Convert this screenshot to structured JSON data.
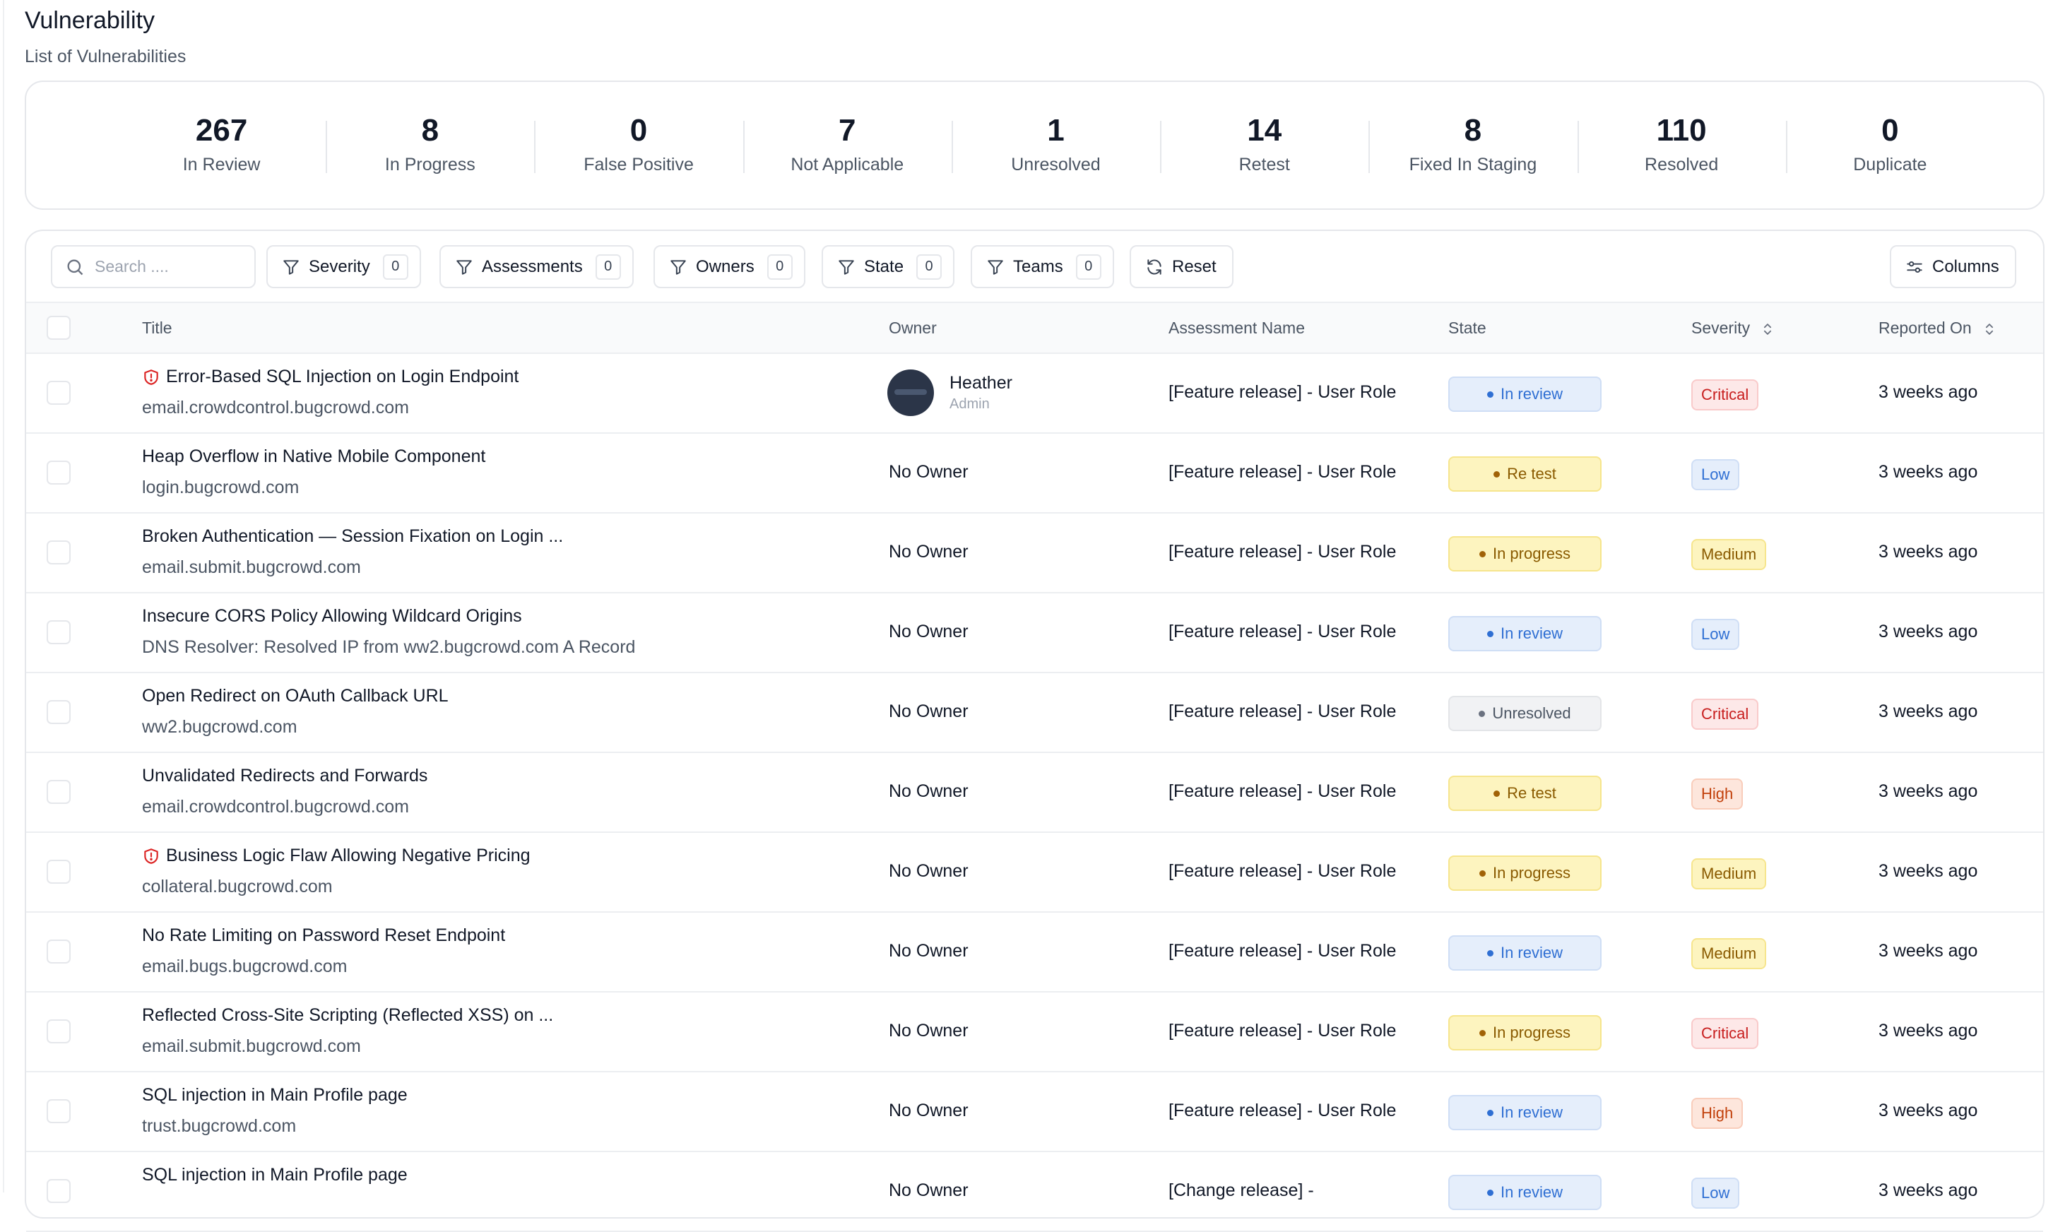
{
  "page": {
    "title": "Vulnerability",
    "subtitle": "List of Vulnerabilities"
  },
  "stats": [
    {
      "value": "267",
      "label": "In Review"
    },
    {
      "value": "8",
      "label": "In Progress"
    },
    {
      "value": "0",
      "label": "False Positive"
    },
    {
      "value": "7",
      "label": "Not Applicable"
    },
    {
      "value": "1",
      "label": "Unresolved"
    },
    {
      "value": "14",
      "label": "Retest"
    },
    {
      "value": "8",
      "label": "Fixed In Staging"
    },
    {
      "value": "110",
      "label": "Resolved"
    },
    {
      "value": "0",
      "label": "Duplicate"
    }
  ],
  "toolbar": {
    "search_placeholder": "Search ....",
    "filters": [
      {
        "label": "Severity",
        "count": "0"
      },
      {
        "label": "Assessments",
        "count": "0"
      },
      {
        "label": "Owners",
        "count": "0"
      },
      {
        "label": "State",
        "count": "0"
      },
      {
        "label": "Teams",
        "count": "0"
      }
    ],
    "reset_label": "Reset",
    "columns_label": "Columns"
  },
  "table": {
    "headers": {
      "title": "Title",
      "owner": "Owner",
      "assessment": "Assessment Name",
      "state": "State",
      "severity": "Severity",
      "reported": "Reported On"
    },
    "rows": [
      {
        "title": "Error-Based SQL Injection on Login Endpoint",
        "subtitle": "email.crowdcontrol.bugcrowd.com",
        "flagged": true,
        "owner": "Heather",
        "owner_role": "Admin",
        "assessment": "[Feature release] - User Role",
        "state": "In review",
        "severity": "Critical",
        "reported": "3 weeks ago"
      },
      {
        "title": "Heap Overflow in Native Mobile Component",
        "subtitle": "login.bugcrowd.com",
        "flagged": false,
        "owner": "No Owner",
        "assessment": "[Feature release] - User Role",
        "state": "Re test",
        "severity": "Low",
        "reported": "3 weeks ago"
      },
      {
        "title": "Broken Authentication — Session Fixation on Login ...",
        "subtitle": "email.submit.bugcrowd.com",
        "flagged": false,
        "owner": "No Owner",
        "assessment": "[Feature release] - User Role",
        "state": "In progress",
        "severity": "Medium",
        "reported": "3 weeks ago"
      },
      {
        "title": "Insecure CORS Policy Allowing Wildcard Origins",
        "subtitle": "DNS Resolver: Resolved IP from ww2.bugcrowd.com A Record",
        "flagged": false,
        "owner": "No Owner",
        "assessment": "[Feature release] - User Role",
        "state": "In review",
        "severity": "Low",
        "reported": "3 weeks ago"
      },
      {
        "title": "Open Redirect on OAuth Callback URL",
        "subtitle": "ww2.bugcrowd.com",
        "flagged": false,
        "owner": "No Owner",
        "assessment": "[Feature release] - User Role",
        "state": "Unresolved",
        "severity": "Critical",
        "reported": "3 weeks ago"
      },
      {
        "title": "Unvalidated Redirects and Forwards",
        "subtitle": "email.crowdcontrol.bugcrowd.com",
        "flagged": false,
        "owner": "No Owner",
        "assessment": "[Feature release] - User Role",
        "state": "Re test",
        "severity": "High",
        "reported": "3 weeks ago"
      },
      {
        "title": "Business Logic Flaw Allowing Negative Pricing",
        "subtitle": "collateral.bugcrowd.com",
        "flagged": true,
        "owner": "No Owner",
        "assessment": "[Feature release] - User Role",
        "state": "In progress",
        "severity": "Medium",
        "reported": "3 weeks ago"
      },
      {
        "title": "No Rate Limiting on Password Reset Endpoint",
        "subtitle": "email.bugs.bugcrowd.com",
        "flagged": false,
        "owner": "No Owner",
        "assessment": "[Feature release] - User Role",
        "state": "In review",
        "severity": "Medium",
        "reported": "3 weeks ago"
      },
      {
        "title": "Reflected Cross-Site Scripting (Reflected XSS) on ...",
        "subtitle": "email.submit.bugcrowd.com",
        "flagged": false,
        "owner": "No Owner",
        "assessment": "[Feature release] - User Role",
        "state": "In progress",
        "severity": "Critical",
        "reported": "3 weeks ago"
      },
      {
        "title": "SQL injection in Main Profile page",
        "subtitle": "trust.bugcrowd.com",
        "flagged": false,
        "owner": "No Owner",
        "assessment": "[Feature release] - User Role",
        "state": "In review",
        "severity": "High",
        "reported": "3 weeks ago"
      },
      {
        "title": "SQL injection in Main Profile page",
        "subtitle": "",
        "flagged": false,
        "owner": "No Owner",
        "assessment": "[Change release] -",
        "state": "In review",
        "severity": "Low",
        "reported": "3 weeks ago"
      }
    ]
  },
  "colors": {
    "critical": "#c81e1e",
    "high": "#c2410c",
    "medium": "#8a5a00",
    "low": "#2f6fd3",
    "in_review": "#2f6fd3",
    "in_progress": "#8a5a00",
    "unresolved": "#4b5563"
  }
}
